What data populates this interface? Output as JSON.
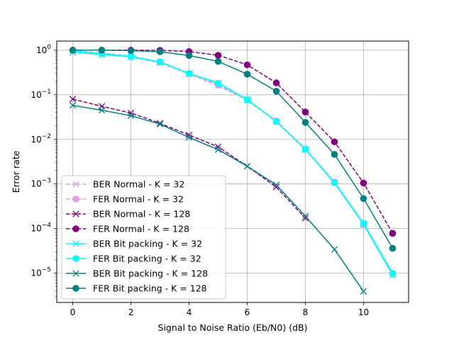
{
  "chart_data": {
    "type": "line",
    "title": "",
    "xlabel": "Signal to Noise Ratio (Eb/N0) (dB)",
    "ylabel": "Error rate",
    "yscale": "log",
    "xlim": [
      -0.55,
      11.55
    ],
    "ylim": [
      2.2e-06,
      1.6
    ],
    "grid": true,
    "legend_position": "lower-left",
    "x_ticks": [
      0,
      2,
      4,
      6,
      8,
      10
    ],
    "x_tick_labels": [
      "0",
      "2",
      "4",
      "6",
      "8",
      "10"
    ],
    "y_ticks": [
      1,
      0.1,
      0.01,
      0.001,
      0.0001,
      1e-05
    ],
    "y_tick_labels": [
      {
        "base": "10",
        "exp": "0"
      },
      {
        "base": "10",
        "exp": "−1"
      },
      {
        "base": "10",
        "exp": "−2"
      },
      {
        "base": "10",
        "exp": "−3"
      },
      {
        "base": "10",
        "exp": "−4"
      },
      {
        "base": "10",
        "exp": "−5"
      }
    ],
    "series": [
      {
        "name": "BER Normal - K = 32",
        "color": "#dda0dd",
        "dash": true,
        "marker": "x",
        "x": [
          0,
          1,
          2,
          3,
          4,
          5,
          6,
          7,
          8,
          9,
          10,
          11
        ],
        "y": [
          0.88,
          0.79,
          0.7,
          0.52,
          0.29,
          0.16,
          0.075,
          0.025,
          0.0058,
          0.00105,
          0.00012,
          9e-06
        ]
      },
      {
        "name": "FER Normal - K = 32",
        "color": "#dda0dd",
        "dash": true,
        "marker": "o",
        "x": [
          0,
          1,
          2,
          3,
          4,
          5,
          6,
          7,
          8,
          9,
          10,
          11
        ],
        "y": [
          0.99,
          0.87,
          0.74,
          0.54,
          0.3,
          0.165,
          0.077,
          0.026,
          0.006,
          0.0011,
          0.000125,
          9.5e-06
        ]
      },
      {
        "name": "BER Normal - K = 128",
        "color": "#800080",
        "dash": true,
        "marker": "x",
        "x": [
          0,
          1,
          2,
          3,
          4,
          5,
          6,
          7,
          8
        ],
        "y": [
          0.08,
          0.055,
          0.039,
          0.023,
          0.0125,
          0.0068,
          0.0025,
          0.00085,
          0.00017
        ]
      },
      {
        "name": "FER Normal - K = 128",
        "color": "#800080",
        "dash": true,
        "marker": "o",
        "x": [
          0,
          1,
          2,
          3,
          4,
          5,
          6,
          7,
          8,
          9,
          10,
          11
        ],
        "y": [
          1.0,
          1.0,
          1.0,
          0.99,
          0.93,
          0.77,
          0.47,
          0.185,
          0.041,
          0.0088,
          0.00105,
          7.8e-05
        ]
      },
      {
        "name": "BER Bit packing - K = 32",
        "color": "#00ffff",
        "dash": false,
        "marker": "x",
        "x": [
          0,
          1,
          2,
          3,
          4,
          5,
          6,
          7,
          8,
          9,
          10,
          11
        ],
        "y": [
          0.92,
          0.8,
          0.71,
          0.54,
          0.3,
          0.185,
          0.078,
          0.025,
          0.006,
          0.00105,
          0.000125,
          9e-06
        ]
      },
      {
        "name": "FER Bit packing - K = 32",
        "color": "#00ffff",
        "dash": false,
        "marker": "o",
        "x": [
          0,
          1,
          2,
          3,
          4,
          5,
          6,
          7,
          8,
          9,
          10,
          11
        ],
        "y": [
          0.97,
          0.83,
          0.72,
          0.55,
          0.3,
          0.18,
          0.077,
          0.025,
          0.006,
          0.00108,
          0.00013,
          9.8e-06
        ]
      },
      {
        "name": "BER Bit packing - K = 128",
        "color": "#008080",
        "dash": false,
        "marker": "x",
        "x": [
          0,
          1,
          2,
          3,
          4,
          5,
          6,
          7,
          8,
          9,
          10
        ],
        "y": [
          0.058,
          0.045,
          0.034,
          0.022,
          0.011,
          0.0059,
          0.0025,
          0.00095,
          0.00019,
          3.4e-05,
          3.9e-06
        ]
      },
      {
        "name": "FER Bit packing - K = 128",
        "color": "#008080",
        "dash": false,
        "marker": "o",
        "x": [
          0,
          1,
          2,
          3,
          4,
          5,
          6,
          7,
          8,
          9,
          10,
          11
        ],
        "y": [
          1.0,
          1.0,
          0.98,
          0.92,
          0.76,
          0.56,
          0.29,
          0.12,
          0.024,
          0.0046,
          0.00047,
          3.6e-05
        ]
      }
    ]
  }
}
